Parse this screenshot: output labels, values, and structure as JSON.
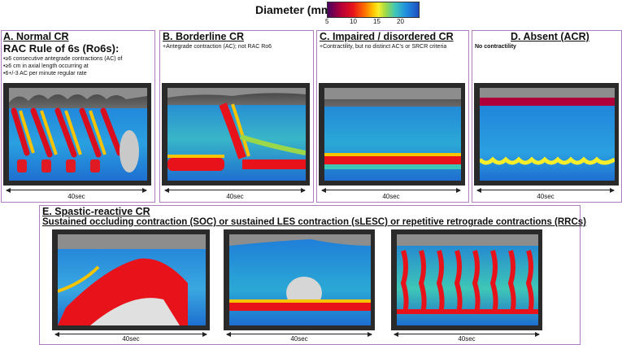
{
  "legend": {
    "title": "Diameter (mm)",
    "ticks": [
      "5",
      "10",
      "15",
      "20"
    ]
  },
  "panels": [
    {
      "title": "A. Normal CR",
      "subtitle": "RAC Rule of 6s (Ro6s):",
      "lines": [
        "•≥6 consecutive antegrade contractions (AC) of",
        "•≥6 cm in axial length occurring at",
        "•6+/-3 AC per minute regular rate"
      ],
      "duration": "40sec"
    },
    {
      "title": "B. Borderline CR",
      "lines": [
        "+Antegrade contraction (AC); not RAC Ro6"
      ],
      "duration": "40sec"
    },
    {
      "title": "C. Impaired / disordered CR",
      "lines": [
        "+Contractility, but no distinct AC's or SRCR criteria"
      ],
      "duration": "40sec"
    },
    {
      "title": "D. Absent (ACR)",
      "lines": [
        "No contractility"
      ],
      "duration": "40sec"
    }
  ],
  "section_e": {
    "title": "E. Spastic-reactive CR",
    "subtitle": "Sustained occluding contraction (SOC)  or sustained LES contraction (sLESC) or repetitive retrograde contractions (RRCs)",
    "durations": [
      "40sec",
      "40sec",
      "40sec"
    ]
  },
  "colors": {
    "panel_border": "#b07cc0",
    "plot_bg": "#1f6fd0"
  }
}
